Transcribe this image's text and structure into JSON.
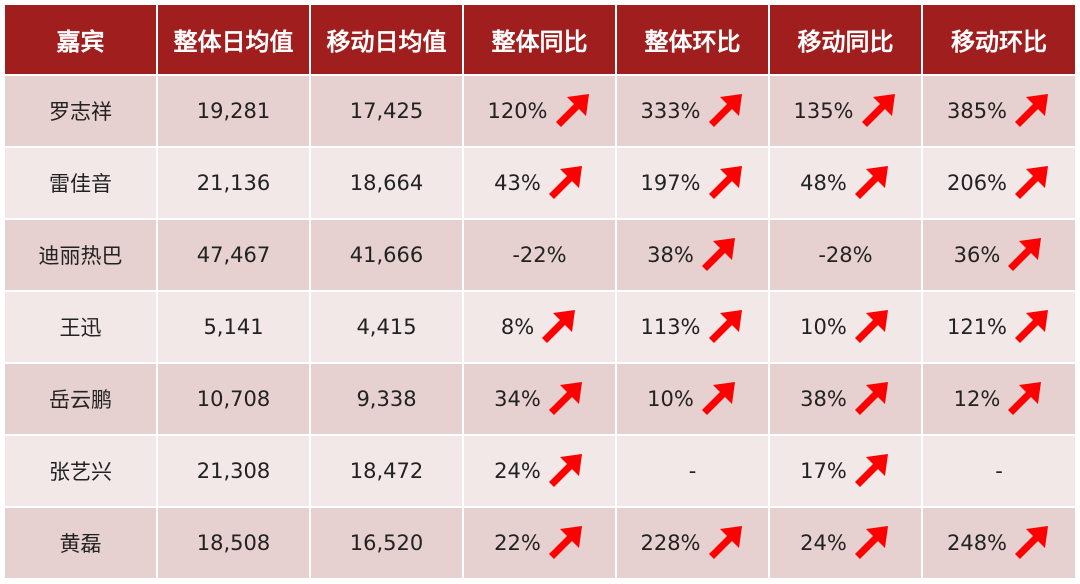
{
  "chart_data": {
    "type": "table",
    "columns": [
      "嘉宾",
      "整体日均值",
      "移动日均值",
      "整体同比",
      "整体环比",
      "移动同比",
      "移动环比"
    ],
    "rows": [
      {
        "name": "罗志祥",
        "overall_avg": "19,281",
        "mobile_avg": "17,425",
        "overall_yoy": "120%",
        "overall_mom": "333%",
        "mobile_yoy": "135%",
        "mobile_mom": "385%",
        "arrows": [
          true,
          true,
          true,
          true
        ]
      },
      {
        "name": "雷佳音",
        "overall_avg": "21,136",
        "mobile_avg": "18,664",
        "overall_yoy": "43%",
        "overall_mom": "197%",
        "mobile_yoy": "48%",
        "mobile_mom": "206%",
        "arrows": [
          true,
          true,
          true,
          true
        ]
      },
      {
        "name": "迪丽热巴",
        "overall_avg": "47,467",
        "mobile_avg": "41,666",
        "overall_yoy": "-22%",
        "overall_mom": "38%",
        "mobile_yoy": "-28%",
        "mobile_mom": "36%",
        "arrows": [
          false,
          true,
          false,
          true
        ]
      },
      {
        "name": "王迅",
        "overall_avg": "5,141",
        "mobile_avg": "4,415",
        "overall_yoy": "8%",
        "overall_mom": "113%",
        "mobile_yoy": "10%",
        "mobile_mom": "121%",
        "arrows": [
          true,
          true,
          true,
          true
        ]
      },
      {
        "name": "岳云鹏",
        "overall_avg": "10,708",
        "mobile_avg": "9,338",
        "overall_yoy": "34%",
        "overall_mom": "10%",
        "mobile_yoy": "38%",
        "mobile_mom": "12%",
        "arrows": [
          true,
          true,
          true,
          true
        ]
      },
      {
        "name": "张艺兴",
        "overall_avg": "21,308",
        "mobile_avg": "18,472",
        "overall_yoy": "24%",
        "overall_mom": "-",
        "mobile_yoy": "17%",
        "mobile_mom": "-",
        "arrows": [
          true,
          false,
          true,
          false
        ]
      },
      {
        "name": "黄磊",
        "overall_avg": "18,508",
        "mobile_avg": "16,520",
        "overall_yoy": "22%",
        "overall_mom": "228%",
        "mobile_yoy": "24%",
        "mobile_mom": "248%",
        "arrows": [
          true,
          true,
          true,
          true
        ]
      }
    ],
    "arrow_icon": "up-right-arrow-icon",
    "colors": {
      "header_bg": "#a01e1e",
      "header_text": "#ffffff",
      "row_odd": "#e6d0d0",
      "row_even": "#f3e8e8",
      "arrow": "#ff0000"
    }
  }
}
